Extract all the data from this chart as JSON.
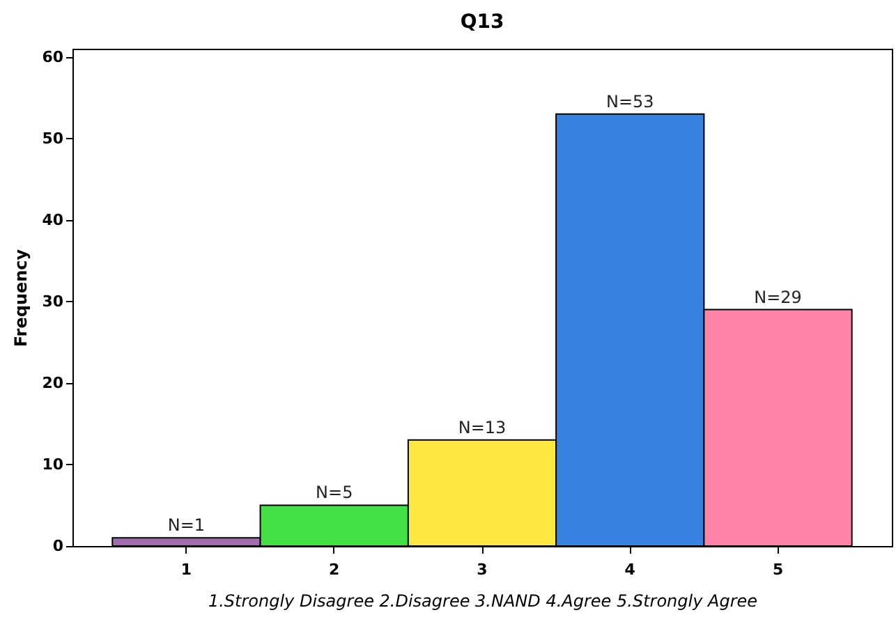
{
  "chart_data": {
    "type": "bar",
    "title": "Q13",
    "xlabel": "1.Strongly Disagree 2.Disagree 3.NAND 4.Agree 5.Strongly Agree",
    "ylabel": "Frequency",
    "categories": [
      "1",
      "2",
      "3",
      "4",
      "5"
    ],
    "values": [
      1,
      5,
      13,
      53,
      29
    ],
    "colors": [
      "#a46cb0",
      "#42e044",
      "#ffe940",
      "#3883e2",
      "#ff82a9"
    ],
    "value_labels": [
      "N=1",
      "N=5",
      "N=13",
      "N=53",
      "N=29"
    ],
    "ylim": [
      0,
      61
    ],
    "yticks": [
      0,
      10,
      20,
      30,
      40,
      50,
      60
    ],
    "grid": false
  }
}
